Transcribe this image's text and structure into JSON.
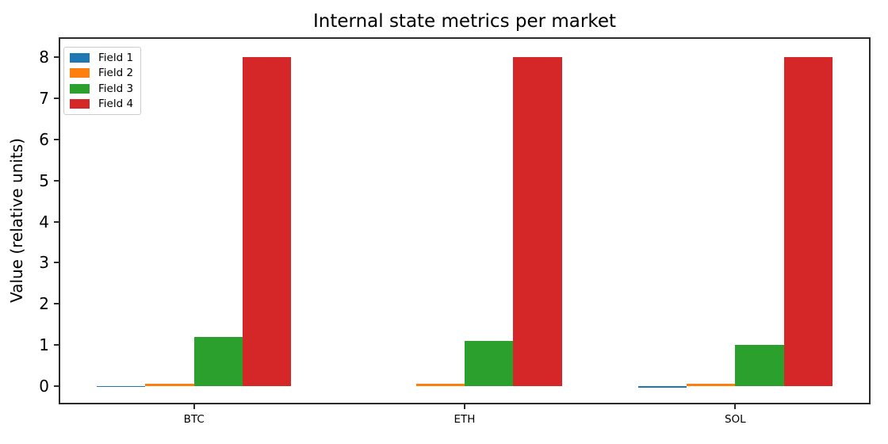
{
  "chart_data": {
    "type": "bar",
    "title": "Internal state metrics per market",
    "xlabel": "",
    "ylabel": "Value (relative units)",
    "categories": [
      "BTC",
      "ETH",
      "SOL"
    ],
    "series": [
      {
        "name": "Field 1",
        "color": "#1f77b4",
        "values": [
          -0.02,
          0.0,
          -0.05
        ]
      },
      {
        "name": "Field 2",
        "color": "#ff7f0e",
        "values": [
          0.05,
          0.05,
          0.05
        ]
      },
      {
        "name": "Field 3",
        "color": "#2ca02c",
        "values": [
          1.2,
          1.1,
          1.0
        ]
      },
      {
        "name": "Field 4",
        "color": "#d62728",
        "values": [
          8.0,
          8.0,
          8.0
        ]
      }
    ],
    "yticks": [
      "0",
      "1",
      "2",
      "3",
      "4",
      "5",
      "6",
      "7",
      "8"
    ],
    "ylim": [
      -0.45,
      8.49
    ],
    "xlim": [
      -0.5,
      2.5
    ],
    "bar_width": 0.18,
    "grid": false,
    "legend_position": "upper left",
    "axis_color": "#2b2b2b",
    "background": "#ffffff"
  }
}
